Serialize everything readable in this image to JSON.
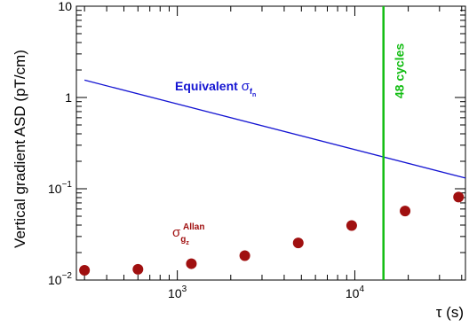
{
  "chart_data": {
    "type": "scatter",
    "ylabel": "Vertical gradient ASD (pT/cm)",
    "xlabel": "τ (s)",
    "x_scale": "log",
    "y_scale": "log",
    "xlim": [
      270,
      42000
    ],
    "ylim": [
      0.01,
      10
    ],
    "grid": false,
    "x_ticks": [
      {
        "value": 1000,
        "base": "10",
        "exp": "3"
      },
      {
        "value": 10000,
        "base": "10",
        "exp": "4"
      }
    ],
    "y_ticks": [
      {
        "value": 0.01,
        "base": "10",
        "exp": "−2"
      },
      {
        "value": 0.1,
        "base": "10",
        "exp": "−1"
      },
      {
        "value": 1,
        "label": "1"
      },
      {
        "value": 10,
        "label": "10"
      }
    ],
    "series": [
      {
        "kind": "points",
        "symbol": "σ",
        "sub": "g",
        "subsub": "z",
        "sup": "Allan",
        "color": "#a01010",
        "x": [
          300,
          600,
          1200,
          2400,
          4800,
          9600,
          19200,
          38400
        ],
        "y": [
          0.0128,
          0.0131,
          0.0151,
          0.0185,
          0.0255,
          0.0395,
          0.057,
          0.081
        ]
      },
      {
        "kind": "line",
        "prefix": "Equivalent",
        "symbol": "σ",
        "sub": "f",
        "subsub": "n",
        "color": "#1414d2",
        "x": [
          300,
          42000
        ],
        "y": [
          1.55,
          0.131
        ]
      }
    ],
    "markers": [
      {
        "kind": "vline",
        "x": 14500,
        "label": "48 cycles",
        "color": "#12bd12"
      }
    ]
  }
}
